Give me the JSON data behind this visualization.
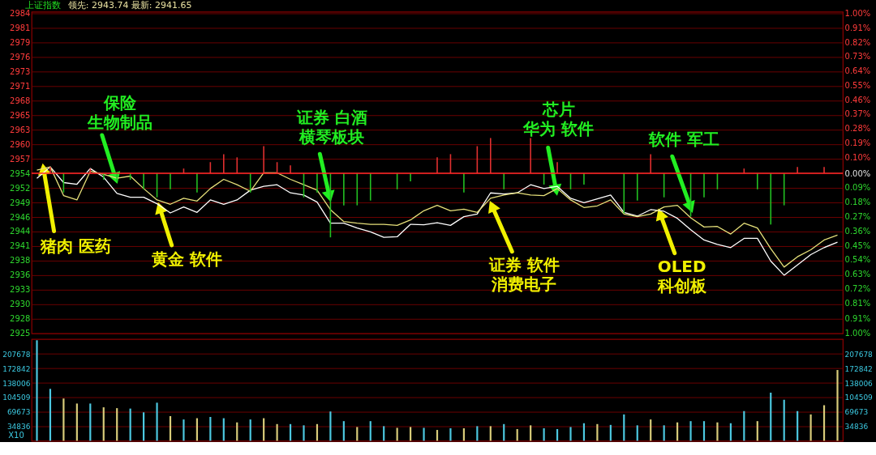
{
  "chart_data": [
    {
      "type": "line",
      "title": "上证指数",
      "subtitle": "领先: 2943.74 最新: 2941.65",
      "categories": [
        null,
        null,
        null,
        null,
        null,
        null,
        null,
        null,
        null,
        null,
        null,
        null,
        null,
        null,
        null,
        null,
        null,
        null,
        null,
        null,
        null,
        null,
        null,
        null,
        null,
        null,
        null,
        null,
        null,
        null,
        null,
        null,
        null,
        null,
        null,
        null,
        null,
        null,
        null,
        null,
        null,
        null,
        null,
        null,
        null,
        null,
        null,
        null,
        null,
        null,
        null,
        null,
        null,
        null,
        null,
        null,
        null,
        null,
        null,
        null,
        null
      ],
      "series": [
        {
          "type": "line",
          "color": "#ffffff",
          "values": [
            2953.6,
            2955.7,
            2952.8,
            2952.5,
            2955.4,
            2953.8,
            2950.8,
            2950.1,
            2950.1,
            2948.9,
            2947.2,
            2948.3,
            2947.3,
            2949.6,
            2948.8,
            2949.6,
            2951.4,
            2952.1,
            2952.4,
            2950.9,
            2950.5,
            2949.2,
            2945.3,
            2945.3,
            2944.4,
            2943.7,
            2942.7,
            2942.8,
            2945.1,
            2945.0,
            2945.4,
            2944.9,
            2946.5,
            2947.0,
            2950.9,
            2950.7,
            2950.9,
            2952.4,
            2951.7,
            2952.1,
            2949.9,
            2949.1,
            2949.8,
            2950.5,
            2947.3,
            2946.6,
            2947.8,
            2947.5,
            2946.2,
            2944.1,
            2942.2,
            2941.4,
            2940.8,
            2942.5,
            2942.5,
            2938.3,
            2935.7,
            2937.6,
            2939.5,
            2940.8,
            2941.8
          ]
        },
        {
          "type": "line",
          "color": "#e6e07a",
          "values": [
            2955.1,
            2955.7,
            2950.4,
            2949.6,
            2954.9,
            2954.3,
            2953.6,
            2954.0,
            2951.7,
            2949.6,
            2948.8,
            2949.9,
            2949.4,
            2951.7,
            2953.4,
            2952.4,
            2951.2,
            2954.6,
            2954.6,
            2953.4,
            2952.4,
            2951.4,
            2947.8,
            2945.6,
            2945.3,
            2945.1,
            2945.1,
            2944.9,
            2945.9,
            2947.6,
            2948.6,
            2947.6,
            2947.9,
            2947.3,
            2949.9,
            2950.5,
            2950.9,
            2950.5,
            2950.4,
            2951.7,
            2949.6,
            2948.2,
            2948.5,
            2949.6,
            2947.0,
            2946.5,
            2947.0,
            2948.3,
            2948.6,
            2946.3,
            2944.6,
            2944.7,
            2943.3,
            2945.3,
            2944.4,
            2940.6,
            2937.2,
            2939.1,
            2940.4,
            2942.2,
            2943.1
          ]
        },
        {
          "type": "bar",
          "axis": "y2",
          "color": "#e03030",
          "values": [
            null,
            0.04,
            null,
            null,
            0.03,
            null,
            null,
            null,
            null,
            null,
            null,
            0.03,
            null,
            0.07,
            0.12,
            0.1,
            null,
            0.17,
            0.07,
            0.05,
            null,
            null,
            null,
            null,
            null,
            null,
            null,
            null,
            null,
            null,
            0.1,
            0.12,
            null,
            0.17,
            0.22,
            null,
            null,
            0.22,
            null,
            0.07,
            null,
            null,
            null,
            null,
            null,
            null,
            0.12,
            null,
            null,
            null,
            null,
            null,
            null,
            0.03,
            null,
            null,
            null,
            0.04,
            null,
            0.04,
            null
          ]
        },
        {
          "type": "bar",
          "axis": "y2",
          "color": "#22c022",
          "values": [
            null,
            null,
            -0.12,
            null,
            null,
            -0.04,
            -0.05,
            -0.04,
            -0.1,
            -0.15,
            -0.1,
            null,
            -0.12,
            null,
            null,
            null,
            -0.12,
            null,
            null,
            null,
            -0.15,
            -0.12,
            -0.4,
            -0.2,
            -0.2,
            -0.17,
            null,
            -0.1,
            -0.05,
            null,
            null,
            null,
            -0.12,
            null,
            null,
            -0.1,
            null,
            null,
            -0.07,
            null,
            -0.1,
            -0.07,
            null,
            null,
            -0.25,
            -0.17,
            null,
            -0.15,
            null,
            -0.27,
            -0.15,
            -0.1,
            null,
            null,
            -0.1,
            -0.32,
            -0.2,
            null,
            null,
            null,
            null
          ]
        }
      ],
      "ylim": [
        2924.96,
        2984.35
      ],
      "yticks": [
        {
          "value": 2924.96,
          "label": "2925"
        },
        {
          "value": 2927.64,
          "label": "2928"
        },
        {
          "value": 2930.33,
          "label": "2930"
        },
        {
          "value": 2933.01,
          "label": "2933"
        },
        {
          "value": 2935.7,
          "label": "2936"
        },
        {
          "value": 2938.38,
          "label": "2938"
        },
        {
          "value": 2941.07,
          "label": "2941"
        },
        {
          "value": 2943.76,
          "label": "2944"
        },
        {
          "value": 2946.44,
          "label": "2946"
        },
        {
          "value": 2949.13,
          "label": "2949"
        },
        {
          "value": 2951.81,
          "label": "2952"
        },
        {
          "value": 2954.5,
          "label": "2954"
        },
        {
          "value": 2957.19,
          "label": "2957"
        },
        {
          "value": 2959.87,
          "label": "2960"
        },
        {
          "value": 2962.56,
          "label": "2963"
        },
        {
          "value": 2965.24,
          "label": "2965"
        },
        {
          "value": 2967.93,
          "label": "2968"
        },
        {
          "value": 2970.62,
          "label": "2971"
        },
        {
          "value": 2973.3,
          "label": "2973"
        },
        {
          "value": 2975.99,
          "label": "2976"
        },
        {
          "value": 2978.67,
          "label": "2979"
        },
        {
          "value": 2981.36,
          "label": "2981"
        },
        {
          "value": 2984.05,
          "label": "2984"
        }
      ],
      "y2lim": [
        -1.0,
        1.01
      ],
      "y2ticks": [
        {
          "value": -1.0,
          "label": "1.00%"
        },
        {
          "value": -0.91,
          "label": "0.91%"
        },
        {
          "value": -0.81,
          "label": "0.81%"
        },
        {
          "value": -0.72,
          "label": "0.72%"
        },
        {
          "value": -0.63,
          "label": "0.63%"
        },
        {
          "value": -0.54,
          "label": "0.54%"
        },
        {
          "value": -0.45,
          "label": "0.45%"
        },
        {
          "value": -0.36,
          "label": "0.36%"
        },
        {
          "value": -0.27,
          "label": "0.27%"
        },
        {
          "value": -0.18,
          "label": "0.18%"
        },
        {
          "value": -0.09,
          "label": "0.09%"
        },
        {
          "value": 0,
          "label": "0.00%"
        },
        {
          "value": 0.1,
          "label": "0.10%"
        },
        {
          "value": 0.19,
          "label": "0.19%"
        },
        {
          "value": 0.28,
          "label": "0.28%"
        },
        {
          "value": 0.37,
          "label": "0.37%"
        },
        {
          "value": 0.46,
          "label": "0.46%"
        },
        {
          "value": 0.55,
          "label": "0.55%"
        },
        {
          "value": 0.64,
          "label": "0.64%"
        },
        {
          "value": 0.73,
          "label": "0.73%"
        },
        {
          "value": 0.82,
          "label": "0.82%"
        },
        {
          "value": 0.91,
          "label": "0.91%"
        },
        {
          "value": 1.0,
          "label": "1.00%"
        }
      ],
      "ref_lines": [
        {
          "axis": "y2",
          "value": 0,
          "color": "#ff2a2a"
        }
      ],
      "grid": "y",
      "legend": false,
      "tick_labels": "y",
      "marker": "none",
      "line_style": "solid",
      "annotations": [
        "保险生物制品",
        "猪肉 医药",
        "黄金 软件",
        "证券 白酒横琴板块",
        "芯片华为 软件",
        "证券 软件消费电子",
        "软件 军工",
        "OLED科创板"
      ]
    },
    {
      "type": "bar",
      "categories": [
        null,
        null,
        null,
        null,
        null,
        null,
        null,
        null,
        null,
        null,
        null,
        null,
        null,
        null,
        null,
        null,
        null,
        null,
        null,
        null,
        null,
        null,
        null,
        null,
        null,
        null,
        null,
        null,
        null,
        null,
        null,
        null,
        null,
        null,
        null,
        null,
        null,
        null,
        null,
        null,
        null,
        null,
        null,
        null,
        null,
        null,
        null,
        null,
        null,
        null,
        null,
        null,
        null,
        null,
        null,
        null,
        null,
        null,
        null,
        null,
        null
      ],
      "values": [
        240000,
        124000,
        101000,
        89000,
        89000,
        80000,
        78000,
        77000,
        68000,
        91000,
        59000,
        51000,
        54000,
        57000,
        54000,
        44000,
        51000,
        54000,
        40000,
        40000,
        37000,
        40000,
        70000,
        47000,
        33000,
        47000,
        35000,
        31000,
        33000,
        31000,
        26000,
        30000,
        30000,
        35000,
        35000,
        40000,
        28000,
        37000,
        30000,
        28000,
        33000,
        42000,
        40000,
        38000,
        63000,
        37000,
        51000,
        37000,
        44000,
        47000,
        47000,
        44000,
        42000,
        71000,
        47000,
        115000,
        98000,
        71000,
        63000,
        85000,
        169000
      ],
      "colors": [
        "#4cc8e0",
        "#4cc8e0",
        "#d8cc7a",
        "#d8cc7a",
        "#4cc8e0",
        "#d8cc7a",
        "#d8cc7a",
        "#4cc8e0",
        "#4cc8e0",
        "#4cc8e0",
        "#d8cc7a",
        "#4cc8e0",
        "#d8cc7a",
        "#4cc8e0",
        "#4cc8e0",
        "#d8cc7a",
        "#4cc8e0",
        "#d8cc7a",
        "#d8cc7a",
        "#4cc8e0",
        "#4cc8e0",
        "#d8cc7a",
        "#4cc8e0",
        "#4cc8e0",
        "#d8cc7a",
        "#4cc8e0",
        "#4cc8e0",
        "#d8cc7a",
        "#d8cc7a",
        "#4cc8e0",
        "#d8cc7a",
        "#4cc8e0",
        "#d8cc7a",
        "#4cc8e0",
        "#d8cc7a",
        "#4cc8e0",
        "#d8cc7a",
        "#d8cc7a",
        "#4cc8e0",
        "#4cc8e0",
        "#4cc8e0",
        "#4cc8e0",
        "#d8cc7a",
        "#4cc8e0",
        "#4cc8e0",
        "#4cc8e0",
        "#d8cc7a",
        "#4cc8e0",
        "#d8cc7a",
        "#4cc8e0",
        "#4cc8e0",
        "#d8cc7a",
        "#4cc8e0",
        "#4cc8e0",
        "#d8cc7a",
        "#4cc8e0",
        "#4cc8e0",
        "#4cc8e0",
        "#d8cc7a",
        "#d8cc7a",
        "#d8cc7a"
      ],
      "ylim": [
        0,
        243000
      ],
      "yticks": [
        34836,
        69673,
        104509,
        138006,
        172842,
        207678
      ],
      "y2lim": [
        0,
        243000
      ],
      "y2ticks": [
        34836,
        69673,
        104509,
        138006,
        172842,
        207678
      ],
      "grid": "y",
      "legend": false,
      "tick_labels": "y",
      "annotations": [
        "X10"
      ]
    }
  ]
}
